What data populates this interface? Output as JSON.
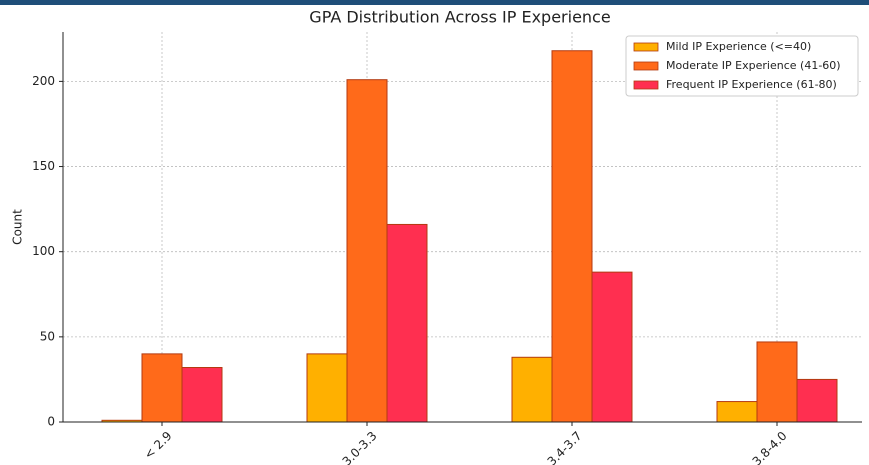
{
  "chart_data": {
    "type": "bar",
    "title": "GPA Distribution Across IP Experience",
    "ylabel": "Count",
    "categories": [
      "< 2.9",
      "3.0-3.3",
      "3.4-3.7",
      "3.8-4.0"
    ],
    "series": [
      {
        "name": "Mild IP Experience (<=40)",
        "color": "#ffb000",
        "values": [
          1,
          40,
          38,
          12
        ]
      },
      {
        "name": "Moderate IP Experience (41-60)",
        "color": "#ff6a1a",
        "values": [
          40,
          201,
          218,
          47
        ]
      },
      {
        "name": "Frequent IP Experience (61-80)",
        "color": "#ff2f50",
        "values": [
          32,
          116,
          88,
          25
        ]
      }
    ],
    "ylim": [
      0,
      229
    ],
    "yticks": [
      0,
      50,
      100,
      150,
      200
    ],
    "grid": true,
    "legend": "upper right"
  }
}
